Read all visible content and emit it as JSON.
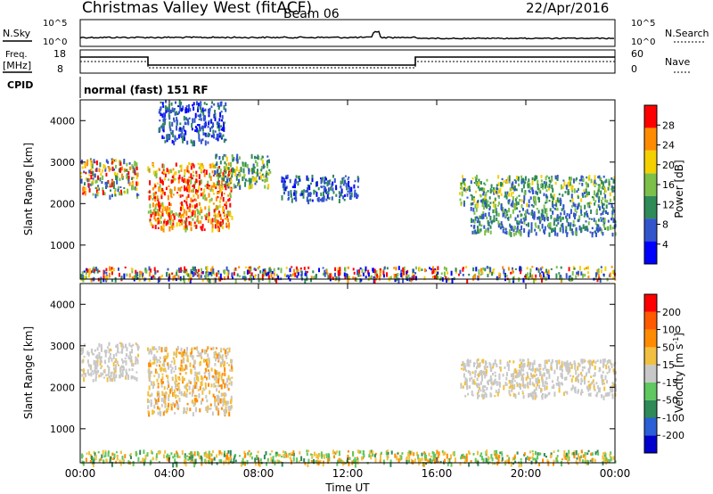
{
  "header": {
    "title": "Christmas Valley West (fitACF)",
    "beam": "Beam 06",
    "date": "22/Apr/2016"
  },
  "top_panels": {
    "nsky_label": "N.Sky",
    "nsky_ticks": [
      "10^5",
      "10^0"
    ],
    "nsearch_label": "N.Search",
    "nsearch_ticks": [
      "10^5",
      "10^0"
    ],
    "freq_label": "Freq.",
    "freq_unit": "[MHz]",
    "freq_ticks": [
      "18",
      "8"
    ],
    "nave_label": "Nave",
    "nave_ticks": [
      "60",
      "0"
    ],
    "cpid_label": "CPID",
    "cpid_text": "normal (fast) 151 RF"
  },
  "chart_data": [
    {
      "type": "heatmap",
      "name": "Power",
      "ylabel": "Slant Range [km]",
      "yticks": [
        "1000",
        "2000",
        "3000",
        "4000"
      ],
      "ylim": [
        180,
        4500
      ],
      "xlim": [
        0,
        24
      ],
      "colorbar": {
        "label": "Power [dB]",
        "ticks": [
          "4",
          "8",
          "12",
          "16",
          "20",
          "24",
          "28"
        ],
        "colors": [
          "#0000ff",
          "#3355cc",
          "#2e8b57",
          "#7cc04a",
          "#f5d000",
          "#ff8c00",
          "#ff0000"
        ]
      },
      "regions": [
        {
          "t0": 0.0,
          "t1": 2.6,
          "r0": 2200,
          "r1": 3100,
          "level": "mid-high"
        },
        {
          "t0": 3.0,
          "t1": 6.8,
          "r0": 1400,
          "r1": 3000,
          "level": "high"
        },
        {
          "t0": 3.5,
          "t1": 6.5,
          "r0": 3500,
          "r1": 4500,
          "level": "low"
        },
        {
          "t0": 6.0,
          "t1": 8.5,
          "r0": 2400,
          "r1": 3200,
          "level": "mid"
        },
        {
          "t0": 9.0,
          "t1": 12.5,
          "r0": 2100,
          "r1": 2700,
          "level": "low"
        },
        {
          "t0": 17.0,
          "t1": 24.0,
          "r0": 2000,
          "r1": 2700,
          "level": "mid"
        },
        {
          "t0": 17.5,
          "t1": 24.0,
          "r0": 1300,
          "r1": 2000,
          "level": "low-mid"
        },
        {
          "t0": 0.0,
          "t1": 24.0,
          "r0": 180,
          "r1": 500,
          "level": "mixed"
        }
      ]
    },
    {
      "type": "heatmap",
      "name": "Velocity",
      "ylabel": "Slant Range [km]",
      "yticks": [
        "1000",
        "2000",
        "3000",
        "4000"
      ],
      "ylim": [
        180,
        4500
      ],
      "xlim": [
        0,
        24
      ],
      "xlabel": "Time UT",
      "xticks": [
        "00:00",
        "04:00",
        "08:00",
        "12:00",
        "16:00",
        "20:00",
        "00:00"
      ],
      "colorbar": {
        "label": "Velocity [m s",
        "label_sup": "-1",
        "label_end": "]",
        "ticks": [
          "200",
          "100",
          "50",
          "15",
          "-15",
          "-50",
          "-100",
          "-200"
        ],
        "colors": [
          "#0000cc",
          "#2a5fd6",
          "#2e8b57",
          "#5fc85f",
          "#c8c8c8",
          "#f2c040",
          "#ff8c00",
          "#ff5a00",
          "#ff0000"
        ]
      },
      "regions": [
        {
          "t0": 0.0,
          "t1": 2.6,
          "r0": 2200,
          "r1": 3100,
          "level": "gray"
        },
        {
          "t0": 3.0,
          "t1": 6.8,
          "r0": 1400,
          "r1": 3000,
          "level": "orange-gray"
        },
        {
          "t0": 17.0,
          "t1": 24.0,
          "r0": 1800,
          "r1": 2700,
          "level": "gray"
        },
        {
          "t0": 0.0,
          "t1": 24.0,
          "r0": 180,
          "r1": 500,
          "level": "orange-green"
        }
      ]
    }
  ]
}
